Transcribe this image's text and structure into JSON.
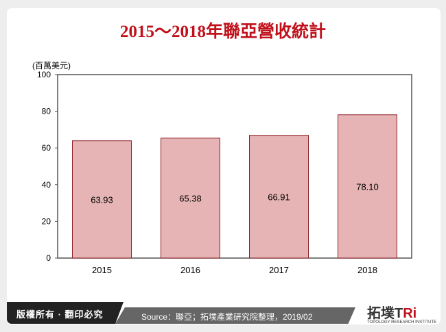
{
  "title": "2015～2018年聯亞營收統計",
  "footer": {
    "copyright": "版權所有 · 翻印必究",
    "source": "Source：聯亞；拓墣產業研究院整理，2019/02",
    "logo": "拓墣TRi",
    "logo_sub": "TOPOLOGY RESEARCH INSTITUTE"
  },
  "chart_data": {
    "type": "bar",
    "title": "2015～2018年聯亞營收統計",
    "ylabel": "(百萬美元)",
    "xlabel": "",
    "categories": [
      "2015",
      "2016",
      "2017",
      "2018"
    ],
    "values": [
      63.93,
      65.38,
      66.91,
      78.1
    ],
    "value_labels": [
      "63.93",
      "65.38",
      "66.91",
      "78.10"
    ],
    "ylim": [
      0,
      100
    ],
    "yticks": [
      "0",
      "20",
      "40",
      "60",
      "80",
      "100"
    ],
    "grid": false,
    "bar_color": "#e6b4b4",
    "bar_edge": "#8a1c22"
  }
}
